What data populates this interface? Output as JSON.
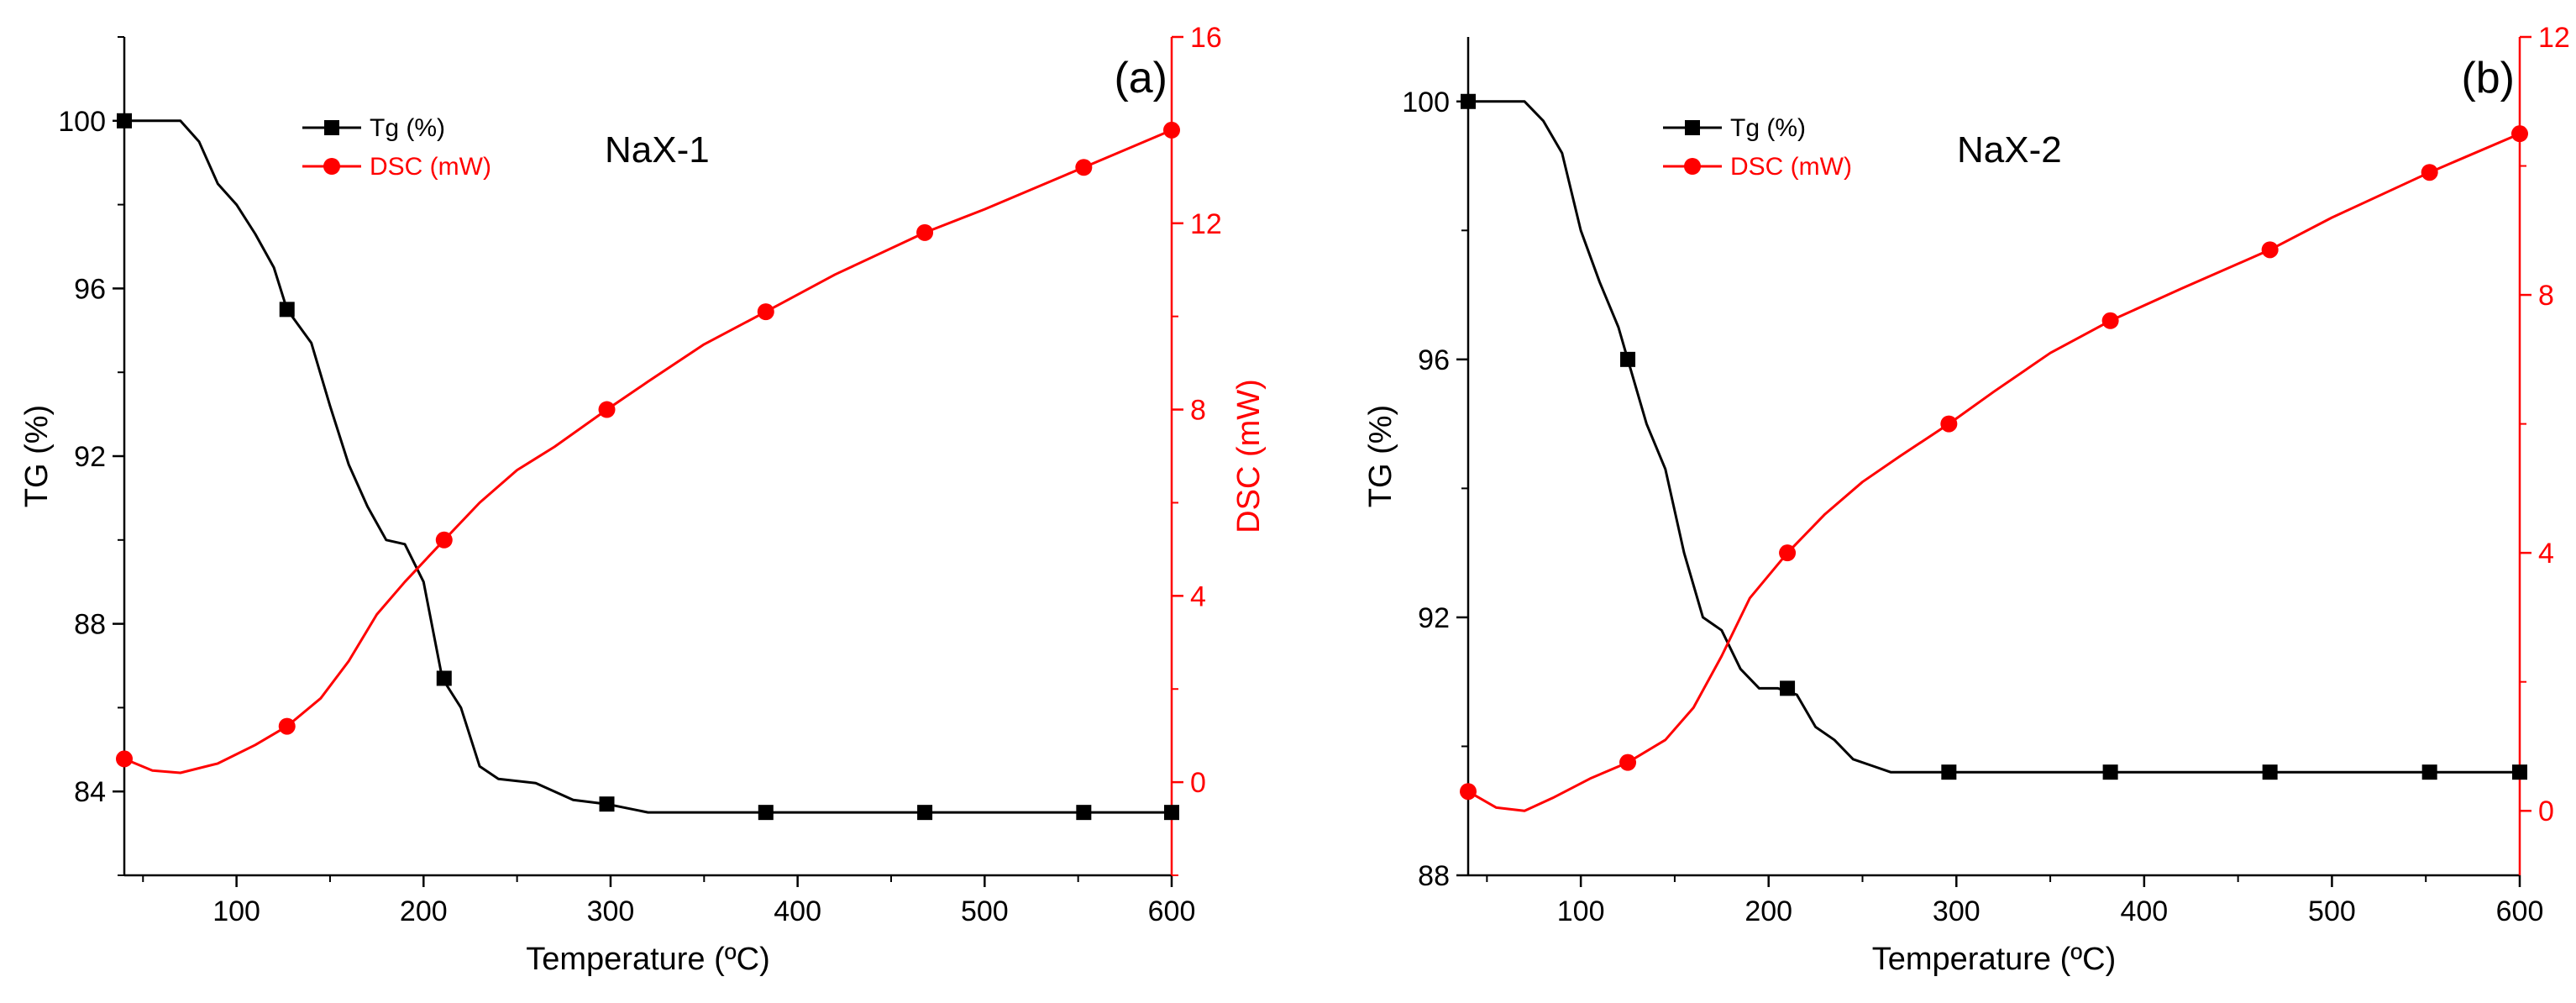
{
  "chart_data": [
    {
      "type": "line",
      "panel_label": "(a)",
      "sample_label": "NaX-1",
      "xlabel": "Temperature (ºC)",
      "ylabel_left": "TG (%)",
      "ylabel_right": "DSC (mW)",
      "xlim": [
        40,
        600
      ],
      "ylim_left": [
        82,
        102
      ],
      "ylim_right": [
        -2,
        16
      ],
      "x_ticks": [
        100,
        200,
        300,
        400,
        500,
        600
      ],
      "y_ticks_left": [
        84,
        88,
        92,
        96,
        100
      ],
      "y_ticks_right": [
        0,
        4,
        8,
        12,
        16
      ],
      "series": [
        {
          "name": "Tg (%)",
          "axis": "left",
          "color": "#000000",
          "marker": "square",
          "x": [
            40,
            70,
            80,
            90,
            100,
            110,
            120,
            127,
            140,
            150,
            160,
            170,
            180,
            190,
            200,
            210,
            220,
            230,
            240,
            260,
            280,
            298,
            320,
            383,
            468,
            553,
            600
          ],
          "y": [
            100,
            100,
            99.5,
            98.5,
            98,
            97.3,
            96.5,
            95.5,
            94.7,
            93.2,
            91.8,
            90.8,
            90.0,
            89.9,
            89.0,
            86.7,
            86.0,
            84.6,
            84.3,
            84.2,
            83.8,
            83.7,
            83.5,
            83.5,
            83.5,
            83.5,
            83.5
          ],
          "marker_x": [
            40,
            127,
            211,
            298,
            383,
            468,
            553,
            600
          ],
          "marker_y": [
            100,
            95.5,
            86.7,
            83.7,
            83.5,
            83.5,
            83.5,
            83.5
          ]
        },
        {
          "name": "DSC (mW)",
          "axis": "right",
          "color": "#ff0000",
          "marker": "circle",
          "x": [
            40,
            55,
            70,
            90,
            110,
            127,
            145,
            160,
            175,
            190,
            211,
            230,
            250,
            270,
            298,
            320,
            350,
            383,
            420,
            468,
            500,
            553,
            600
          ],
          "y": [
            0.5,
            0.25,
            0.2,
            0.4,
            0.8,
            1.2,
            1.8,
            2.6,
            3.6,
            4.3,
            5.2,
            6.0,
            6.7,
            7.2,
            8.0,
            8.6,
            9.4,
            10.1,
            10.9,
            11.8,
            12.3,
            13.2,
            14.0
          ],
          "marker_x": [
            40,
            127,
            211,
            298,
            383,
            468,
            553,
            600
          ],
          "marker_y": [
            0.5,
            1.2,
            5.2,
            8.0,
            10.1,
            11.8,
            13.2,
            14.0
          ]
        }
      ]
    },
    {
      "type": "line",
      "panel_label": "(b)",
      "sample_label": "NaX-2",
      "xlabel": "Temperature (ºC)",
      "ylabel_left": "TG (%)",
      "ylabel_right": "DSC (mW)",
      "xlim": [
        40,
        600
      ],
      "ylim_left": [
        88,
        101
      ],
      "ylim_right": [
        -1,
        12
      ],
      "x_ticks": [
        100,
        200,
        300,
        400,
        500,
        600
      ],
      "y_ticks_left": [
        88,
        92,
        96,
        100
      ],
      "y_ticks_right": [
        0,
        4,
        8,
        12
      ],
      "series": [
        {
          "name": "Tg (%)",
          "axis": "left",
          "color": "#000000",
          "marker": "square",
          "x": [
            40,
            70,
            80,
            90,
            100,
            110,
            120,
            125,
            135,
            145,
            155,
            165,
            175,
            185,
            195,
            205,
            215,
            225,
            235,
            245,
            255,
            265,
            296,
            382,
            467,
            552,
            600
          ],
          "y": [
            100,
            100,
            99.7,
            99.2,
            98.0,
            97.2,
            96.5,
            96.0,
            95.0,
            94.3,
            93.0,
            92.0,
            91.8,
            91.2,
            90.9,
            90.9,
            90.8,
            90.3,
            90.1,
            89.8,
            89.7,
            89.6,
            89.6,
            89.6,
            89.6,
            89.6,
            89.6
          ],
          "marker_x": [
            40,
            125,
            210,
            296,
            382,
            467,
            552,
            600
          ],
          "marker_y": [
            100,
            96.0,
            90.9,
            89.6,
            89.6,
            89.6,
            89.6,
            89.6
          ]
        },
        {
          "name": "DSC (mW)",
          "axis": "right",
          "color": "#ff0000",
          "marker": "circle",
          "x": [
            40,
            55,
            70,
            85,
            105,
            125,
            145,
            160,
            175,
            190,
            210,
            230,
            250,
            270,
            296,
            320,
            350,
            382,
            420,
            467,
            500,
            552,
            600
          ],
          "y": [
            0.3,
            0.05,
            0.0,
            0.2,
            0.5,
            0.75,
            1.1,
            1.6,
            2.4,
            3.3,
            4.0,
            4.6,
            5.1,
            5.5,
            6.0,
            6.5,
            7.1,
            7.6,
            8.1,
            8.7,
            9.2,
            9.9,
            10.5
          ],
          "marker_x": [
            40,
            125,
            210,
            296,
            382,
            467,
            552,
            600
          ],
          "marker_y": [
            0.3,
            0.75,
            4.0,
            6.0,
            7.6,
            8.7,
            9.9,
            10.5
          ]
        }
      ]
    }
  ]
}
